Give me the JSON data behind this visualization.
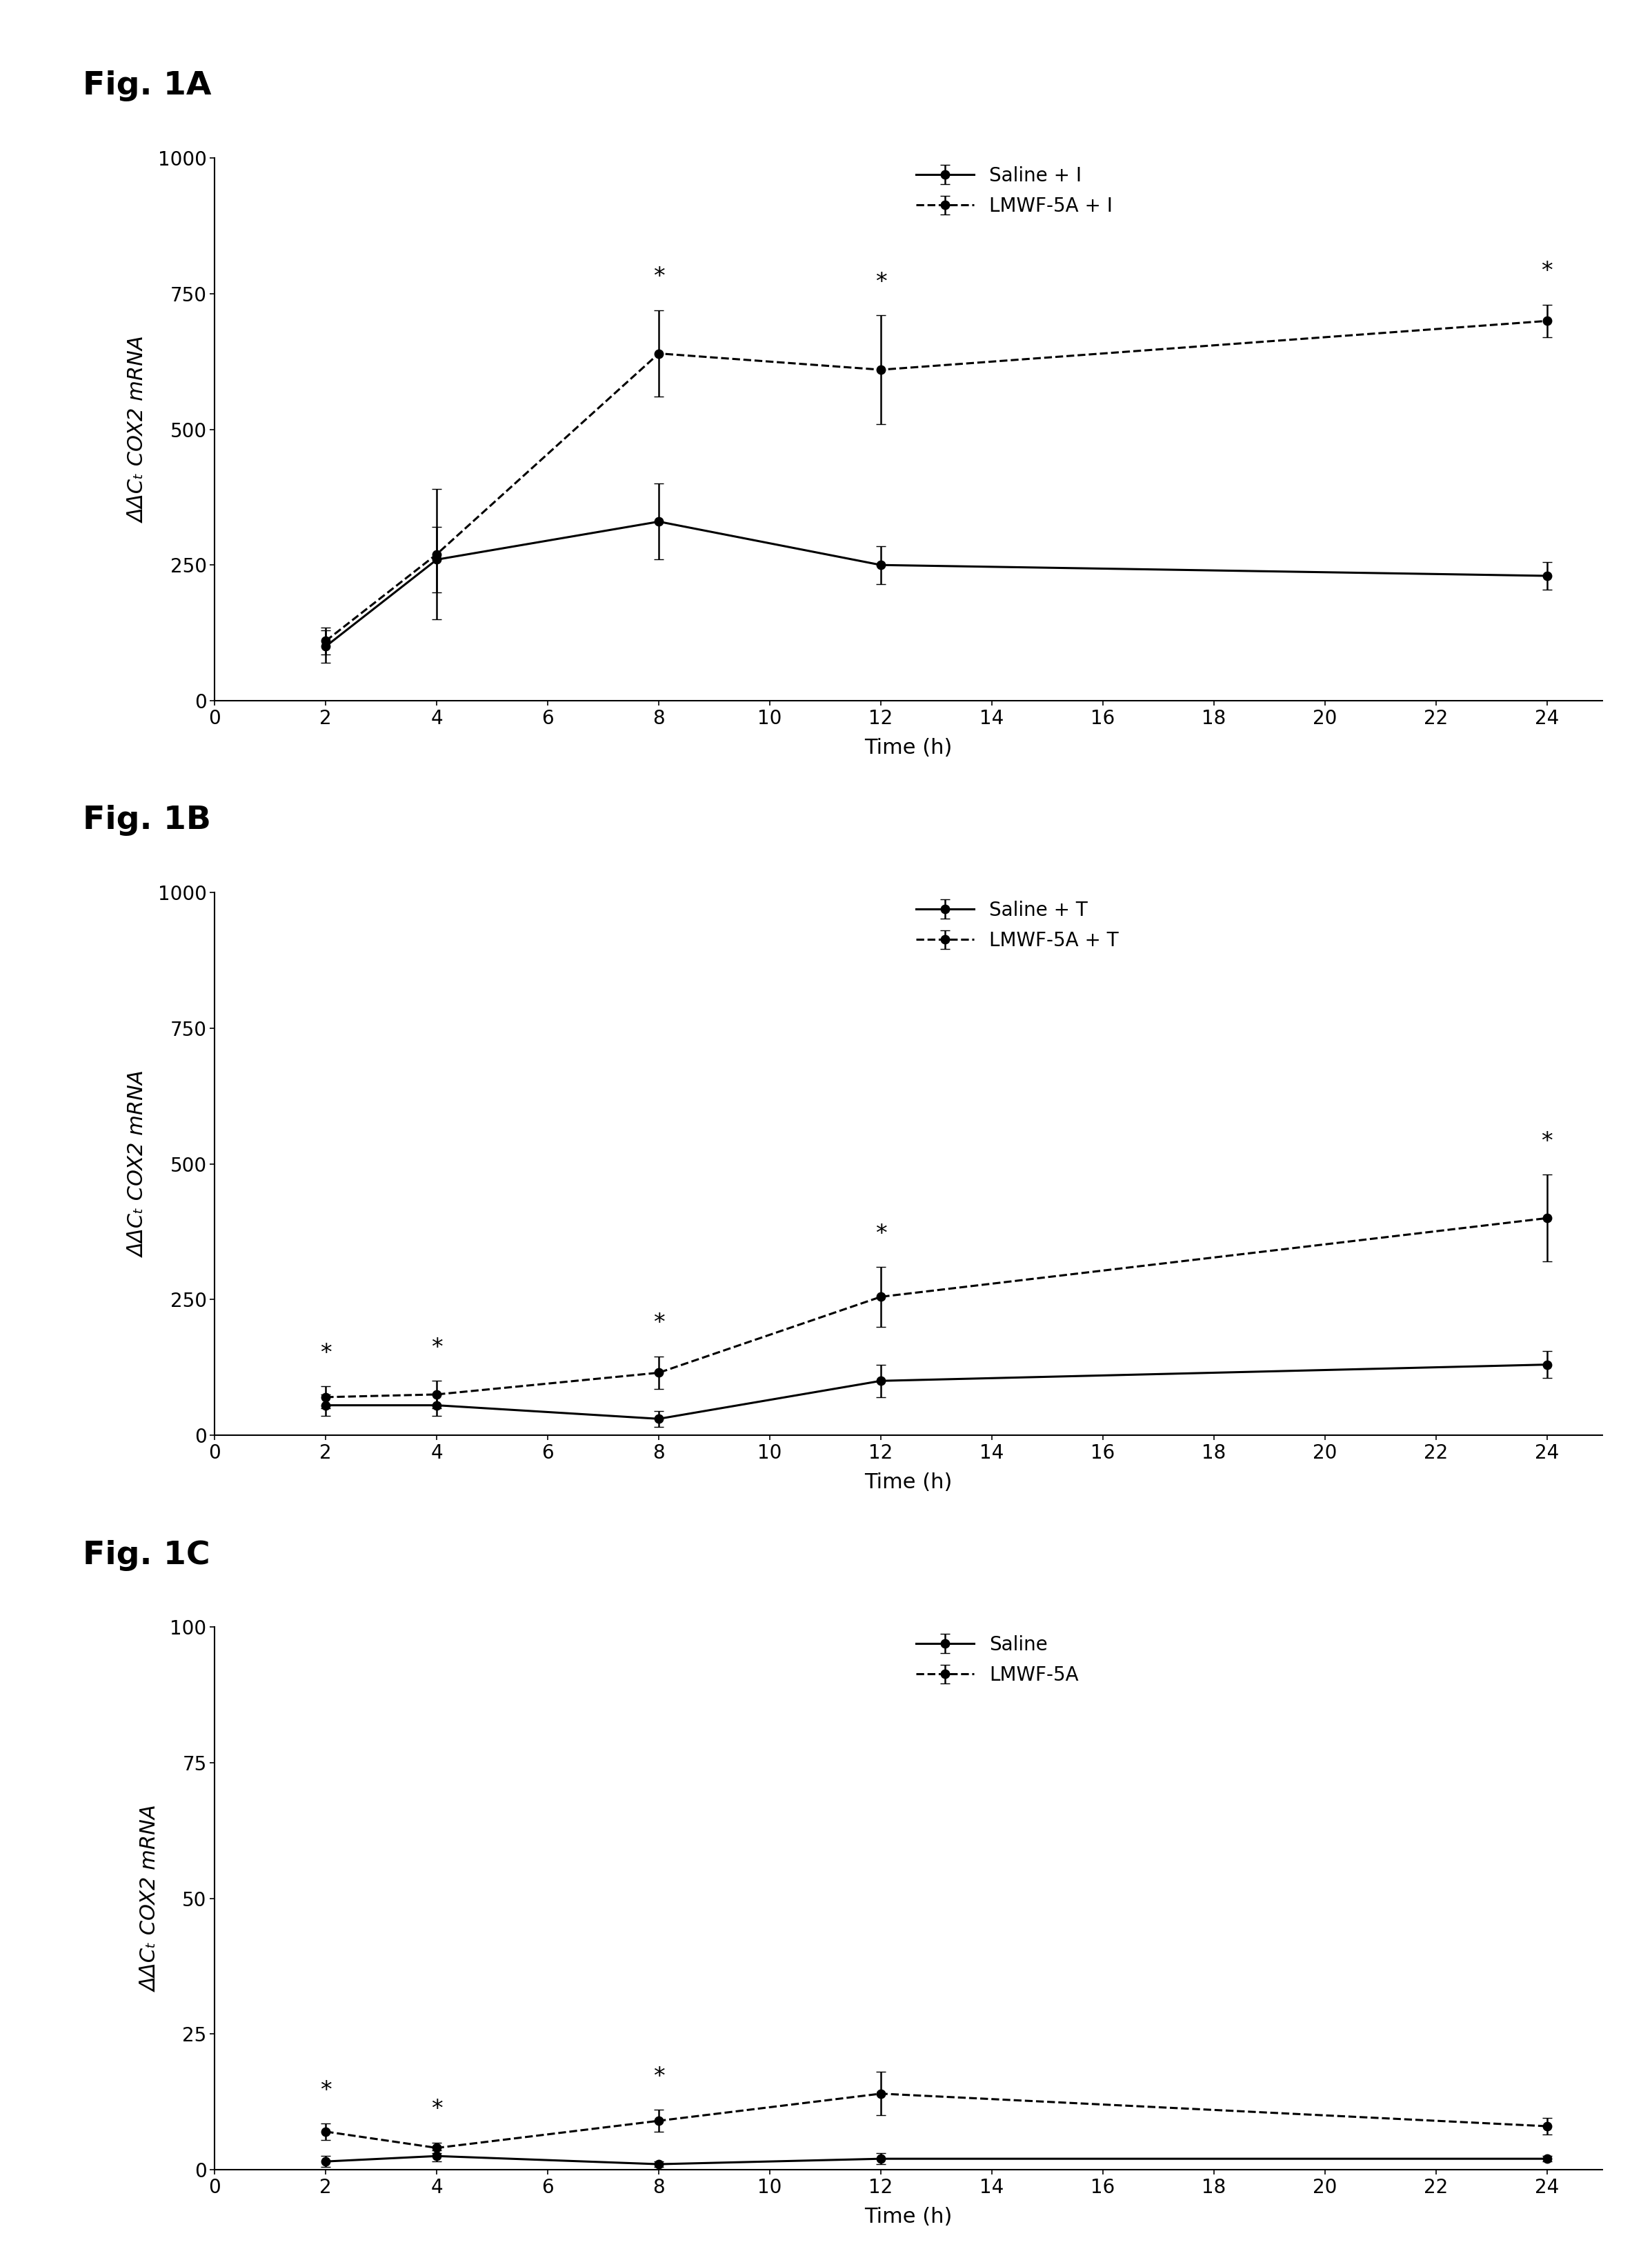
{
  "fig_labels": [
    "Fig. 1A",
    "Fig. 1B",
    "Fig. 1C"
  ],
  "time_points": [
    2,
    4,
    8,
    12,
    24
  ],
  "background_color": "#ffffff",
  "panel_A": {
    "solid_y": [
      100,
      260,
      330,
      250,
      230
    ],
    "solid_err": [
      30,
      60,
      70,
      35,
      25
    ],
    "dashed_y": [
      110,
      270,
      640,
      610,
      700
    ],
    "dashed_err": [
      25,
      120,
      80,
      100,
      30
    ],
    "ylim": [
      0,
      1000
    ],
    "yticks": [
      0,
      250,
      500,
      750,
      1000
    ],
    "ylabel": "ΔΔCₜ COX2 mRNA",
    "xlabel": "Time (h)",
    "legend1": "Saline + I",
    "legend2": "LMWF-5A + I",
    "star_solid": [],
    "star_dashed": [
      8,
      12,
      24
    ]
  },
  "panel_B": {
    "solid_y": [
      55,
      55,
      30,
      100,
      130
    ],
    "solid_err": [
      20,
      20,
      15,
      30,
      25
    ],
    "dashed_y": [
      70,
      75,
      115,
      255,
      400
    ],
    "dashed_err": [
      20,
      25,
      30,
      55,
      80
    ],
    "ylim": [
      0,
      1000
    ],
    "yticks": [
      0,
      250,
      500,
      750,
      1000
    ],
    "ylabel": "ΔΔCₜ COX2 mRNA",
    "xlabel": "Time (h)",
    "legend1": "Saline + T",
    "legend2": "LMWF-5A + T",
    "star_solid": [],
    "star_dashed": [
      2,
      4,
      8,
      12,
      24
    ]
  },
  "panel_C": {
    "solid_y": [
      1.5,
      2.5,
      1.0,
      2.0,
      2.0
    ],
    "solid_err": [
      1.0,
      1.0,
      0.5,
      1.0,
      0.5
    ],
    "dashed_y": [
      7.0,
      4.0,
      9.0,
      14.0,
      8.0
    ],
    "dashed_err": [
      1.5,
      1.0,
      2.0,
      4.0,
      1.5
    ],
    "ylim": [
      0,
      100
    ],
    "yticks": [
      0,
      25,
      50,
      75,
      100
    ],
    "ylabel": "ΔΔCₜ COX2 mRNA",
    "xlabel": "Time (h)",
    "legend1": "Saline",
    "legend2": "LMWF-5A",
    "star_solid": [],
    "star_dashed": [
      2,
      4,
      8
    ]
  },
  "xticks": [
    0,
    2,
    4,
    6,
    8,
    10,
    12,
    14,
    16,
    18,
    20,
    22,
    24
  ],
  "xlim": [
    0,
    25
  ],
  "line_color": "#000000",
  "marker": "o",
  "markersize": 9,
  "linewidth": 2.2,
  "capsize": 5,
  "elinewidth": 1.8,
  "fig_label_fontsize": 34,
  "axis_label_fontsize": 22,
  "tick_fontsize": 20,
  "legend_fontsize": 20,
  "star_fontsize": 24
}
